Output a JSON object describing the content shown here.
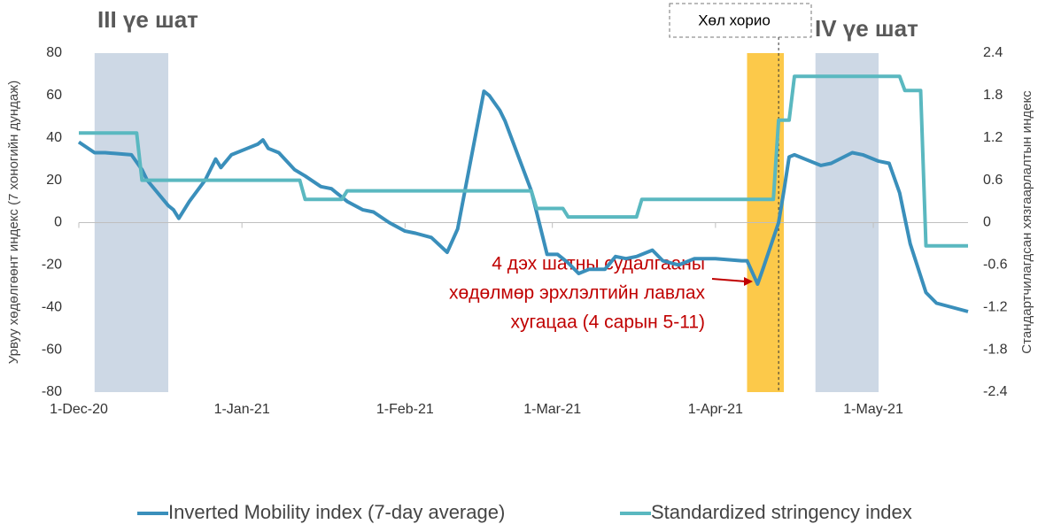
{
  "chart_data": {
    "type": "line",
    "annotations": {
      "phase3": "III үе шат",
      "phase4": "IV үе шат",
      "lockdown": "Хөл хорио",
      "reference_period": [
        "4 дэх шатны судалгааны",
        "хөдөлмөр эрхлэлтийн лавлах",
        "хугацаа (4 сарын 5-11)"
      ]
    },
    "ylabel": "Урвуу хөдөлгөөнт индекс (7 хоногийн дундаж)",
    "y2label": "Стандартчилагдсан хязгаарлалтын индекс",
    "xlim": [
      "1-Dec-20",
      "19-May-21"
    ],
    "xticks": [
      "1-Dec-20",
      "1-Jan-21",
      "1-Feb-21",
      "1-Mar-21",
      "1-Apr-21",
      "1-May-21"
    ],
    "ylim": [
      -80,
      80
    ],
    "yticks": [
      80,
      60,
      40,
      20,
      0,
      -20,
      -40,
      -60,
      -80
    ],
    "y2lim": [
      -2.4,
      2.4
    ],
    "y2ticks": [
      2.4,
      1.8,
      1.2,
      0.6,
      0,
      -0.6,
      -1.2,
      -1.8,
      -2.4
    ],
    "shaded_periods": [
      {
        "start": "4-Dec-20",
        "end": "18-Dec-20",
        "color": "#cdd8e5"
      },
      {
        "start": "7-Apr-21",
        "end": "14-Apr-21",
        "color": "#fcc94a"
      },
      {
        "start": "20-Apr-21",
        "end": "2-May-21",
        "color": "#cdd8e5"
      }
    ],
    "lockdown_date": "13-Apr-21",
    "legend": "bottom",
    "series": [
      {
        "name": "Inverted Mobility index (7-day average)",
        "color": "#3a8fbb",
        "x": [
          "1-Dec-20",
          "4-Dec-20",
          "6-Dec-20",
          "11-Dec-20",
          "13-Dec-20",
          "14-Dec-20",
          "18-Dec-20",
          "19-Dec-20",
          "20-Dec-20",
          "22-Dec-20",
          "25-Dec-20",
          "27-Dec-20",
          "28-Dec-20",
          "30-Dec-20",
          "2-Jan-21",
          "4-Jan-21",
          "5-Jan-21",
          "6-Jan-21",
          "8-Jan-21",
          "11-Jan-21",
          "13-Jan-21",
          "16-Jan-21",
          "18-Jan-21",
          "21-Jan-21",
          "24-Jan-21",
          "26-Jan-21",
          "29-Jan-21",
          "1-Feb-21",
          "3-Feb-21",
          "6-Feb-21",
          "9-Feb-21",
          "11-Feb-21",
          "16-Feb-21",
          "17-Feb-21",
          "19-Feb-21",
          "20-Feb-21",
          "25-Feb-21",
          "28-Feb-21",
          "2-Mar-21",
          "4-Mar-21",
          "6-Mar-21",
          "8-Mar-21",
          "11-Mar-21",
          "13-Mar-21",
          "15-Mar-21",
          "17-Mar-21",
          "20-Mar-21",
          "22-Mar-21",
          "25-Mar-21",
          "28-Mar-21",
          "1-Apr-21",
          "6-Apr-21",
          "7-Apr-21",
          "9-Apr-21",
          "10-Apr-21",
          "13-Apr-21",
          "14-Apr-21",
          "15-Apr-21",
          "16-Apr-21",
          "18-Apr-21",
          "21-Apr-21",
          "23-Apr-21",
          "27-Apr-21",
          "29-Apr-21",
          "2-May-21",
          "4-May-21",
          "6-May-21",
          "8-May-21",
          "11-May-21",
          "13-May-21",
          "19-May-21"
        ],
        "values": [
          38,
          33,
          33,
          32,
          25,
          20,
          8,
          6,
          2,
          10,
          20,
          30,
          26,
          32,
          35,
          37,
          39,
          35,
          33,
          25,
          22,
          17,
          16,
          10,
          6,
          5,
          0,
          -4,
          -5,
          -7,
          -14,
          -3,
          62,
          60,
          53,
          48,
          15,
          -15,
          -15,
          -19,
          -24,
          -22,
          -22,
          -16,
          -17,
          -16,
          -13,
          -18,
          -20,
          -17,
          -17,
          -18,
          -18,
          -29,
          -22,
          0,
          15,
          31,
          32,
          30,
          27,
          28,
          33,
          32,
          29,
          28,
          14,
          -10,
          -33,
          -38,
          -42
        ]
      },
      {
        "name": "Standardized stringency index",
        "color": "#5ab8c0",
        "axis": "y2",
        "x": [
          "1-Dec-20",
          "12-Dec-20",
          "13-Dec-20",
          "12-Jan-21",
          "13-Jan-21",
          "20-Jan-21",
          "21-Jan-21",
          "25-Feb-21",
          "26-Feb-21",
          "3-Mar-21",
          "4-Mar-21",
          "17-Mar-21",
          "18-Mar-21",
          "12-Apr-21",
          "13-Apr-21",
          "15-Apr-21",
          "16-Apr-21",
          "6-May-21",
          "7-May-21",
          "10-May-21",
          "11-May-21",
          "19-May-21"
        ],
        "values": [
          1.27,
          1.27,
          0.6,
          0.6,
          0.33,
          0.33,
          0.45,
          0.45,
          0.2,
          0.2,
          0.08,
          0.08,
          0.33,
          0.33,
          1.45,
          1.45,
          2.07,
          2.07,
          1.87,
          1.87,
          -0.33,
          -0.33
        ]
      }
    ]
  }
}
